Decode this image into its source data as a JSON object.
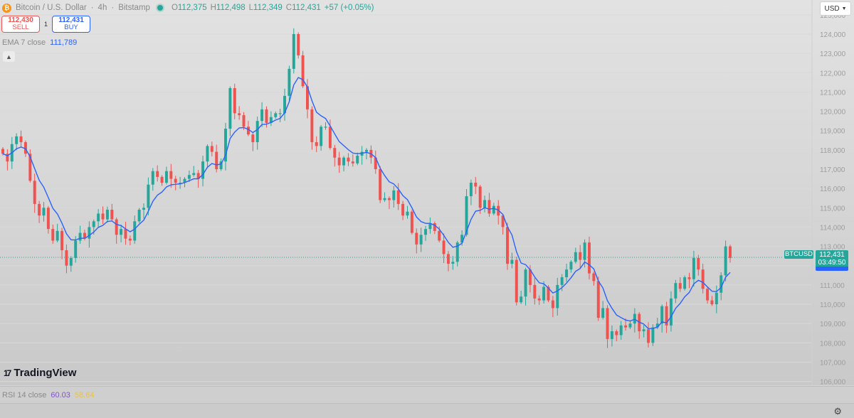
{
  "header": {
    "coin_icon": "bitcoin-icon",
    "symbol_title": "Bitcoin / U.S. Dollar",
    "sep1": "·",
    "interval": "4h",
    "sep2": "·",
    "exchange": "Bitstamp",
    "ohlc": {
      "open_label": "O",
      "open": "112,375",
      "high_label": "H",
      "high": "112,498",
      "low_label": "L",
      "low": "112,349",
      "close_label": "C",
      "close": "112,431",
      "change": "+57 (+0.05%)"
    }
  },
  "trade": {
    "sell_price": "112,430",
    "sell_label": "SELL",
    "spread": "1",
    "buy_price": "112,431",
    "buy_label": "BUY"
  },
  "indicator": {
    "ema_label": "EMA 7 close",
    "ema_value": "111,789",
    "collapse_icon": "chevron-up-icon"
  },
  "currency_selector": {
    "value": "USD",
    "icon": "chevron-down-icon"
  },
  "brand": {
    "name": "TradingView",
    "mark": "17"
  },
  "price_labels": {
    "symbol": "BTCUSD",
    "price": "112,431",
    "countdown": "03:49:50"
  },
  "rsi": {
    "label": "RSI 14 close",
    "value": "60.03",
    "value2": "58.64"
  },
  "colors": {
    "up": "#26a69a",
    "down": "#ef5350",
    "ema": "#2962ff",
    "axis_text": "#9e9e9e"
  },
  "chart_data": {
    "type": "candlestick",
    "y_axis_ticks": [
      "125,000",
      "124,000",
      "123,000",
      "122,000",
      "121,000",
      "120,000",
      "119,000",
      "118,000",
      "117,000",
      "116,000",
      "115,000",
      "114,000",
      "113,000",
      "112,000",
      "111,000",
      "110,000",
      "109,000",
      "108,000",
      "107,000",
      "106,000"
    ],
    "ylim": [
      105800,
      125400
    ],
    "last_price": 112431,
    "ema_period": 7,
    "closes": [
      117800,
      117400,
      118300,
      118700,
      118400,
      117800,
      116400,
      115200,
      114600,
      115000,
      113900,
      113300,
      113800,
      112800,
      112000,
      112400,
      113300,
      113700,
      113400,
      114000,
      114300,
      114700,
      114400,
      114900,
      114400,
      113600,
      113900,
      113400,
      113300,
      114300,
      114900,
      115000,
      116200,
      116900,
      116600,
      116300,
      116900,
      116500,
      116300,
      116300,
      116500,
      116700,
      116800,
      116500,
      117400,
      118200,
      117900,
      117000,
      117400,
      119100,
      121200,
      119900,
      119800,
      119200,
      118800,
      118400,
      119500,
      120100,
      119400,
      119700,
      119900,
      119900,
      120800,
      122200,
      124000,
      122900,
      121300,
      120100,
      118400,
      118200,
      119200,
      119200,
      118100,
      117600,
      117200,
      117600,
      117400,
      117300,
      117700,
      117900,
      118000,
      117600,
      117000,
      115400,
      115500,
      115400,
      115900,
      115200,
      114600,
      114800,
      113700,
      113100,
      113600,
      113900,
      114200,
      113800,
      113300,
      112600,
      112100,
      112200,
      113200,
      113600,
      115600,
      116300,
      116100,
      115000,
      115400,
      114700,
      115100,
      114600,
      114000,
      112100,
      112300,
      110100,
      110400,
      111800,
      111000,
      110300,
      110200,
      110900,
      110200,
      109800,
      111000,
      111400,
      111800,
      112200,
      112700,
      112300,
      113200,
      111600,
      111200,
      109300,
      109800,
      108200,
      108600,
      108400,
      108900,
      108800,
      109000,
      109500,
      108600,
      108700,
      108000,
      108800,
      109000,
      109900,
      108900,
      110300,
      111100,
      110800,
      111400,
      111300,
      112400,
      111800,
      110800,
      110200,
      110000,
      110600,
      111500,
      113000,
      112400
    ]
  }
}
